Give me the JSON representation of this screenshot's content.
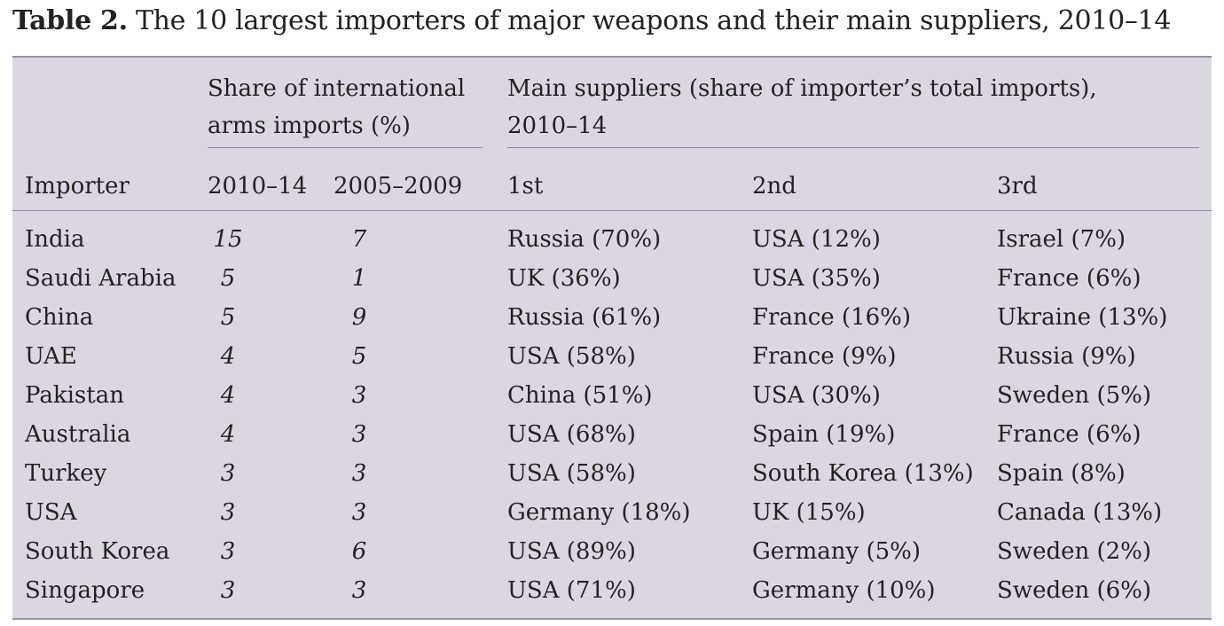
{
  "caption": {
    "label": "Table 2.",
    "text": " The 10 largest importers of major weapons and their main suppliers, 2010–14"
  },
  "headers": {
    "share_group": "Share of international arms imports (%)",
    "suppliers_group": "Main suppliers (share of importer’s total imports), 2010–14",
    "importer": "Importer",
    "period_recent": "2010–14",
    "period_prior": "2005–2009",
    "first": "1st",
    "second": "2nd",
    "third": "3rd"
  },
  "rows": [
    {
      "importer": "India",
      "share_2010_14": "15",
      "share_2005_09": "7",
      "first": "Russia (70%)",
      "second": "USA (12%)",
      "third": "Israel (7%)"
    },
    {
      "importer": "Saudi Arabia",
      "share_2010_14": "5",
      "share_2005_09": "1",
      "first": "UK (36%)",
      "second": "USA (35%)",
      "third": "France (6%)"
    },
    {
      "importer": "China",
      "share_2010_14": "5",
      "share_2005_09": "9",
      "first": "Russia (61%)",
      "second": "France (16%)",
      "third": "Ukraine (13%)"
    },
    {
      "importer": "UAE",
      "share_2010_14": "4",
      "share_2005_09": "5",
      "first": "USA (58%)",
      "second": "France (9%)",
      "third": "Russia (9%)"
    },
    {
      "importer": "Pakistan",
      "share_2010_14": "4",
      "share_2005_09": "3",
      "first": "China (51%)",
      "second": "USA (30%)",
      "third": "Sweden (5%)"
    },
    {
      "importer": "Australia",
      "share_2010_14": "4",
      "share_2005_09": "3",
      "first": "USA (68%)",
      "second": "Spain (19%)",
      "third": "France (6%)"
    },
    {
      "importer": "Turkey",
      "share_2010_14": "3",
      "share_2005_09": "3",
      "first": "USA (58%)",
      "second": "South Korea (13%)",
      "third": "Spain (8%)"
    },
    {
      "importer": "USA",
      "share_2010_14": "3",
      "share_2005_09": "3",
      "first": "Germany (18%)",
      "second": "UK (15%)",
      "third": "Canada (13%)"
    },
    {
      "importer": "South Korea",
      "share_2010_14": "3",
      "share_2005_09": "6",
      "first": "USA (89%)",
      "second": "Germany (5%)",
      "third": "Sweden (2%)"
    },
    {
      "importer": "Singapore",
      "share_2010_14": "3",
      "share_2005_09": "3",
      "first": "USA (71%)",
      "second": "Germany (10%)",
      "third": "Sweden (6%)"
    }
  ]
}
